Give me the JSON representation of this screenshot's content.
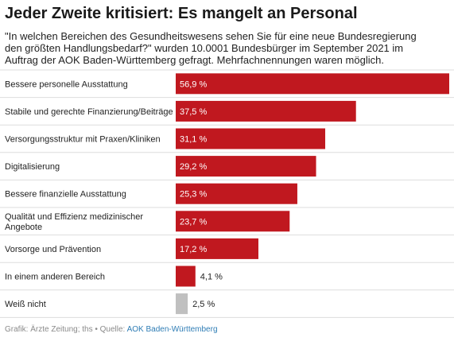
{
  "title": "Jeder Zweite kritisiert: Es mangelt an Personal",
  "subtitle": "\"In welchen Bereichen des Gesundheitswesens sehen Sie für eine neue Bundesregierung den größten Handlungsbedarf?\" wurden 10.0001 Bundesbürger im September 2021 im Auftrag der AOK Baden-Württemberg gefragt. Mehrfachnennungen waren möglich.",
  "source": {
    "prefix": "Grafik: Ärzte Zeitung; ths • Quelle:",
    "link": "AOK Baden-Württemberg"
  },
  "colors": {
    "bar": "#c0181f",
    "bar_other": "#c0c0c0",
    "divider": "#dddddd"
  },
  "chart_data": {
    "type": "bar",
    "orientation": "horizontal",
    "categories": [
      [
        "Bessere personelle Ausstattung"
      ],
      [
        "Stabile und gerechte Finanzierung/Beiträge"
      ],
      [
        "Versorgungsstruktur mit Praxen/Kliniken"
      ],
      [
        "Digitalisierung"
      ],
      [
        "Bessere finanzielle Ausstattung"
      ],
      [
        "Qualität und Effizienz medizinischer",
        "Angebote"
      ],
      [
        "Vorsorge und Prävention"
      ],
      [
        "In einem anderen Bereich"
      ],
      [
        "Weiß nicht"
      ]
    ],
    "values": [
      56.9,
      37.5,
      31.1,
      29.2,
      25.3,
      23.7,
      17.2,
      4.1,
      2.5
    ],
    "value_labels": [
      "56,9 %",
      "37,5 %",
      "31,1 %",
      "29,2 %",
      "25,3 %",
      "23,7 %",
      "17,2 %",
      "4,1 %",
      "2,5 %"
    ],
    "highlight_gray": [
      false,
      false,
      false,
      false,
      false,
      false,
      false,
      false,
      true
    ],
    "xlim": [
      0,
      56.9
    ],
    "grid": false,
    "legend": "none"
  }
}
